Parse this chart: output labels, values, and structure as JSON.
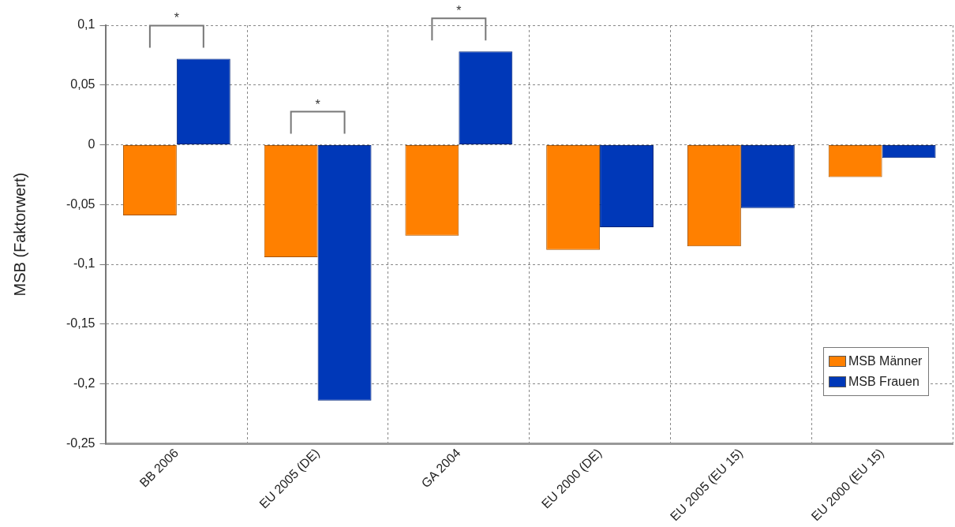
{
  "chart_data": {
    "type": "bar",
    "ylabel": "MSB (Faktorwert)",
    "categories": [
      "BB 2006",
      "EU 2005 (DE)",
      "GA 2004",
      "EU 2000 (DE)",
      "EU 2005 (EU 15)",
      "EU 2000 (EU 15)"
    ],
    "series": [
      {
        "name": "MSB Männer",
        "color": "#ff8000",
        "values": [
          -0.059,
          -0.094,
          -0.076,
          -0.088,
          -0.085,
          -0.027
        ]
      },
      {
        "name": "MSB Frauen",
        "color": "#0038b8",
        "values": [
          0.072,
          -0.214,
          0.078,
          -0.069,
          -0.053,
          -0.011
        ]
      }
    ],
    "ylim": [
      -0.25,
      0.1
    ],
    "yticks": [
      {
        "value": 0.1,
        "label": "0,1"
      },
      {
        "value": 0.05,
        "label": "0,05"
      },
      {
        "value": 0,
        "label": "0"
      },
      {
        "value": -0.05,
        "label": "-0,05"
      },
      {
        "value": -0.1,
        "label": "-0,1"
      },
      {
        "value": -0.15,
        "label": "-0,15"
      },
      {
        "value": -0.2,
        "label": "-0,2"
      },
      {
        "value": -0.25,
        "label": "-0,25"
      }
    ],
    "annotations": [
      "*",
      "*",
      "*"
    ],
    "grid": true,
    "legend": "bottom right"
  }
}
